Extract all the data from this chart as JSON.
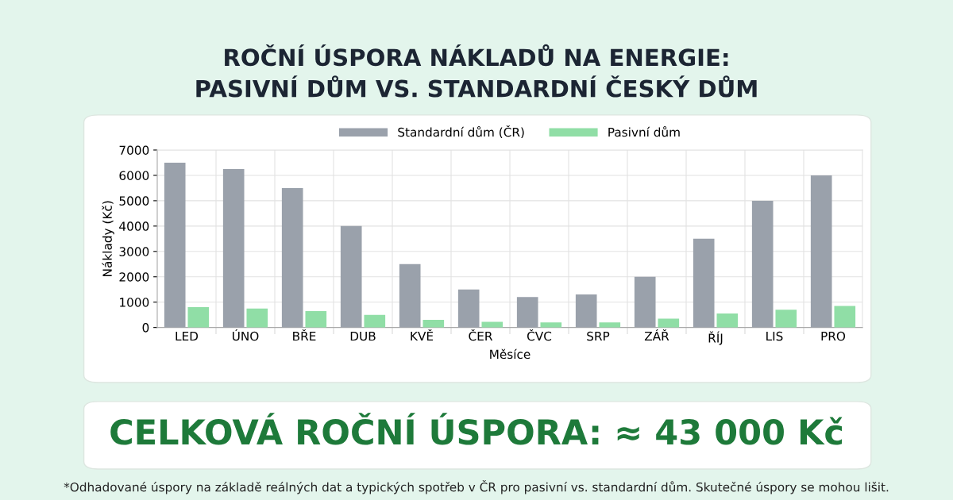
{
  "chart_data": {
    "type": "bar",
    "title": "ROČNÍ ÚSPORA NÁKLADŮ NA ENERGIE:\nPASIVNÍ DŮM VS. STANDARDNÍ ČESKÝ DŮM",
    "xlabel": "Měsíce",
    "ylabel": "Náklady (Kč)",
    "categories": [
      "LED",
      "ÚNO",
      "BŘE",
      "DUB",
      "KVĚ",
      "ČER",
      "ČVC",
      "SRP",
      "ZÁŘ",
      "ŘÍJ",
      "LIS",
      "PRO"
    ],
    "series": [
      {
        "name": "Standardní dům (ČR)",
        "color": "#9aa1ab",
        "values": [
          6500,
          6250,
          5500,
          4000,
          2500,
          1500,
          1200,
          1300,
          2000,
          3500,
          5000,
          6000
        ]
      },
      {
        "name": "Pasivní dům",
        "color": "#90dea6",
        "values": [
          800,
          750,
          650,
          500,
          300,
          220,
          200,
          200,
          350,
          550,
          700,
          850
        ]
      }
    ],
    "ylim": [
      0,
      7000
    ],
    "yticks": [
      0,
      1000,
      2000,
      3000,
      4000,
      5000,
      6000,
      7000
    ],
    "grid": true,
    "legend": "top",
    "annotations": [
      "CELKOVÁ ROČNÍ ÚSPORA: ≈ 43 000 Kč",
      "*Odhadované úspory na základě reálných dat a typických spotřeb v ČR pro pasivní vs. standardní dům. Skutečné úspory se mohou lišit."
    ]
  }
}
